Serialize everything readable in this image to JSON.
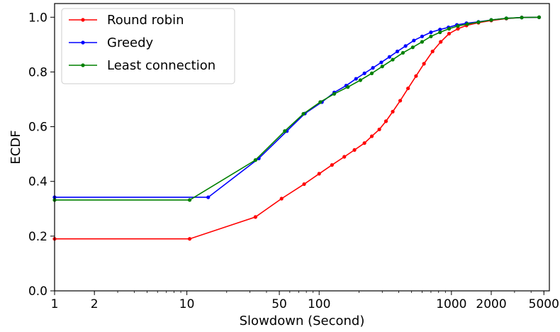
{
  "chart_data": {
    "type": "line",
    "title": "",
    "xlabel": "Slowdown (Second)",
    "ylabel": "ECDF",
    "xscale": "log",
    "xlim": [
      1,
      5500
    ],
    "ylim": [
      0,
      1.05
    ],
    "x_ticks": [
      {
        "value": 1,
        "label": "1"
      },
      {
        "value": 2,
        "label": "2"
      },
      {
        "value": 10,
        "label": "10"
      },
      {
        "value": 50,
        "label": "50"
      },
      {
        "value": 100,
        "label": "100"
      },
      {
        "value": 1000,
        "label": "1000"
      },
      {
        "value": 2000,
        "label": "2000"
      },
      {
        "value": 5000,
        "label": "5000"
      }
    ],
    "y_ticks": [
      {
        "value": 0.0,
        "label": "0.0"
      },
      {
        "value": 0.2,
        "label": "0.2"
      },
      {
        "value": 0.4,
        "label": "0.4"
      },
      {
        "value": 0.6,
        "label": "0.6"
      },
      {
        "value": 0.8,
        "label": "0.8"
      },
      {
        "value": 1.0,
        "label": "1.0"
      }
    ],
    "grid": false,
    "legend_position": "top-left",
    "series": [
      {
        "name": "Round robin",
        "color": "#ff0000",
        "points": [
          [
            1,
            0.19
          ],
          [
            10.5,
            0.19
          ],
          [
            33,
            0.27
          ],
          [
            52,
            0.337
          ],
          [
            77,
            0.39
          ],
          [
            100,
            0.428
          ],
          [
            125,
            0.46
          ],
          [
            155,
            0.49
          ],
          [
            185,
            0.515
          ],
          [
            220,
            0.54
          ],
          [
            250,
            0.565
          ],
          [
            285,
            0.59
          ],
          [
            320,
            0.62
          ],
          [
            360,
            0.655
          ],
          [
            410,
            0.695
          ],
          [
            470,
            0.74
          ],
          [
            540,
            0.785
          ],
          [
            620,
            0.83
          ],
          [
            720,
            0.875
          ],
          [
            830,
            0.91
          ],
          [
            960,
            0.94
          ],
          [
            1120,
            0.958
          ],
          [
            1300,
            0.97
          ],
          [
            1600,
            0.98
          ],
          [
            2000,
            0.988
          ],
          [
            2600,
            0.995
          ],
          [
            3400,
            0.999
          ],
          [
            4600,
            1.0
          ]
        ]
      },
      {
        "name": "Greedy",
        "color": "#0000ff",
        "points": [
          [
            1,
            0.342
          ],
          [
            14.5,
            0.342
          ],
          [
            35,
            0.484
          ],
          [
            57,
            0.584
          ],
          [
            78,
            0.648
          ],
          [
            105,
            0.69
          ],
          [
            130,
            0.725
          ],
          [
            160,
            0.75
          ],
          [
            190,
            0.775
          ],
          [
            220,
            0.795
          ],
          [
            255,
            0.815
          ],
          [
            295,
            0.835
          ],
          [
            340,
            0.855
          ],
          [
            390,
            0.875
          ],
          [
            450,
            0.895
          ],
          [
            520,
            0.915
          ],
          [
            600,
            0.93
          ],
          [
            700,
            0.945
          ],
          [
            820,
            0.955
          ],
          [
            950,
            0.963
          ],
          [
            1100,
            0.972
          ],
          [
            1300,
            0.978
          ],
          [
            1600,
            0.983
          ],
          [
            2000,
            0.99
          ],
          [
            2600,
            0.996
          ],
          [
            3400,
            0.999
          ],
          [
            4600,
            1.0
          ]
        ]
      },
      {
        "name": "Least connection",
        "color": "#008000",
        "points": [
          [
            1,
            0.332
          ],
          [
            10.5,
            0.332
          ],
          [
            33,
            0.478
          ],
          [
            55,
            0.584
          ],
          [
            76,
            0.647
          ],
          [
            102,
            0.69
          ],
          [
            130,
            0.72
          ],
          [
            165,
            0.745
          ],
          [
            205,
            0.77
          ],
          [
            250,
            0.795
          ],
          [
            300,
            0.82
          ],
          [
            360,
            0.845
          ],
          [
            430,
            0.87
          ],
          [
            510,
            0.89
          ],
          [
            600,
            0.91
          ],
          [
            700,
            0.93
          ],
          [
            820,
            0.945
          ],
          [
            960,
            0.958
          ],
          [
            1120,
            0.968
          ],
          [
            1320,
            0.975
          ],
          [
            1600,
            0.982
          ],
          [
            2000,
            0.99
          ],
          [
            2600,
            0.996
          ],
          [
            3400,
            0.999
          ],
          [
            4600,
            1.0
          ]
        ]
      }
    ]
  }
}
